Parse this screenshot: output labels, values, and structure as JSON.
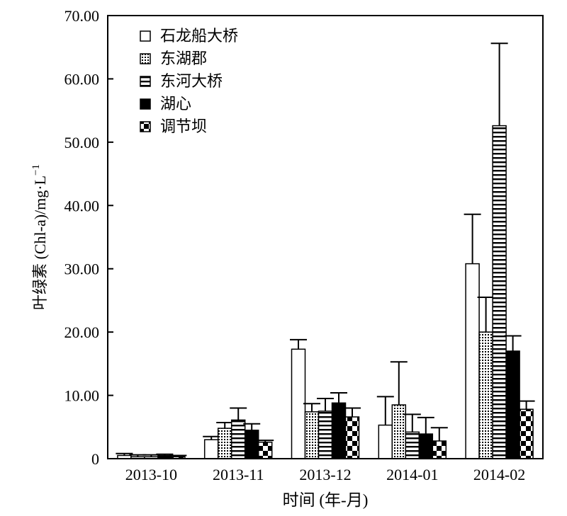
{
  "chart_data": {
    "type": "bar",
    "ylabel": "叶绿素 (Chl-a)/mg·L",
    "ylabel_superscript": "−1",
    "xlabel": "时间 (年-月)",
    "categories": [
      "2013-10",
      "2013-11",
      "2013-12",
      "2014-01",
      "2014-02"
    ],
    "ylim": [
      0,
      70
    ],
    "yticks": [
      "0",
      "10.00",
      "20.00",
      "30.00",
      "40.00",
      "50.00",
      "60.00",
      "70.00"
    ],
    "ytick_values": [
      0,
      10,
      20,
      30,
      40,
      50,
      60,
      70
    ],
    "legend_position": "top-left",
    "grid": false,
    "series": [
      {
        "name": "石龙船大桥",
        "pattern": "open",
        "values": [
          0.5,
          3.0,
          17.3,
          5.3,
          30.8
        ],
        "errors": [
          0.3,
          0.5,
          1.5,
          4.5,
          7.8
        ]
      },
      {
        "name": "东湖郡",
        "pattern": "grid",
        "values": [
          0.3,
          4.8,
          7.4,
          8.5,
          20.0
        ],
        "errors": [
          0.3,
          0.9,
          1.3,
          6.8,
          5.5
        ]
      },
      {
        "name": "东河大桥",
        "pattern": "hstripe",
        "values": [
          0.3,
          6.1,
          7.5,
          4.2,
          52.6
        ],
        "errors": [
          0.3,
          1.9,
          2.0,
          2.8,
          13.0
        ]
      },
      {
        "name": "湖心",
        "pattern": "solid",
        "values": [
          0.5,
          4.5,
          8.8,
          3.9,
          17.0
        ],
        "errors": [
          0.2,
          1.0,
          1.6,
          2.6,
          2.4
        ]
      },
      {
        "name": "调节坝",
        "pattern": "checker",
        "values": [
          0.3,
          2.6,
          6.6,
          2.8,
          7.8
        ],
        "errors": [
          0.2,
          0.3,
          1.4,
          2.1,
          1.3
        ]
      }
    ]
  }
}
